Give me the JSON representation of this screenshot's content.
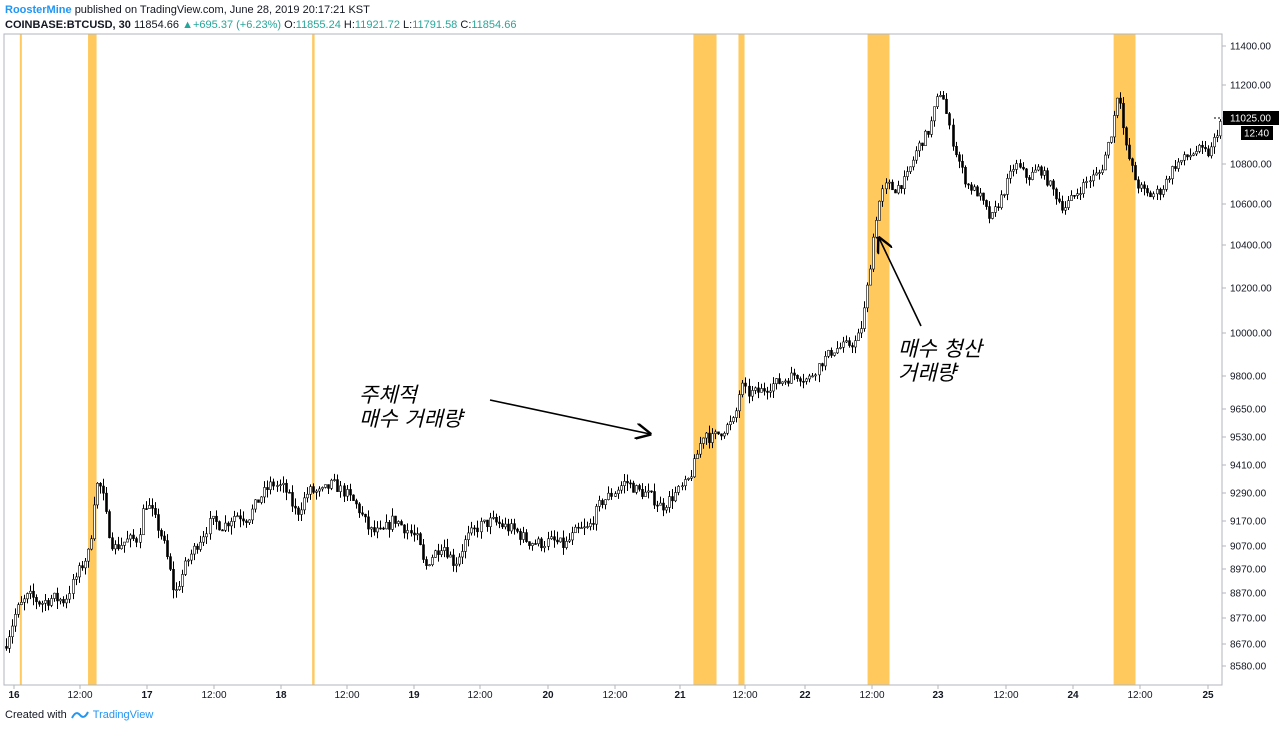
{
  "header": {
    "author": "RoosterMine",
    "published": "published on TradingView.com, June 28, 2019 20:17:21 KST",
    "symbol": "COINBASE:BTCUSD, 30",
    "last": "11854.66",
    "change": "+695.37 (+6.23%)",
    "o_label": "O:",
    "o_value": "11855.24",
    "h_label": "H:",
    "h_value": "11921.72",
    "l_label": "L:",
    "l_value": "11791.58",
    "c_label": "C:",
    "c_value": "11854.66"
  },
  "footer": {
    "created_with": "Created with",
    "brand": "TradingView",
    "logo_icon": "tradingview-logo-icon"
  },
  "chart_data": {
    "type": "candlestick",
    "price_axis_labels": [
      "11400.00",
      "11200.00",
      "11025.00",
      "10800.00",
      "10600.00",
      "10400.00",
      "10200.00",
      "10000.00",
      "9800.00",
      "9650.00",
      "9530.00",
      "9410.00",
      "9290.00",
      "9170.00",
      "9070.00",
      "8970.00",
      "8870.00",
      "8770.00",
      "8670.00",
      "8580.00"
    ],
    "current_price_label": "11025.00",
    "current_time_label": "12:40",
    "time_axis_labels": [
      "16",
      "12:00",
      "17",
      "12:00",
      "18",
      "12:00",
      "19",
      "12:00",
      "20",
      "12:00",
      "21",
      "12:00",
      "22",
      "12:00",
      "23",
      "12:00",
      "24",
      "12:00",
      "25"
    ],
    "x_range": [
      0,
      1
    ],
    "ylim": [
      8560,
      11460
    ],
    "highlight_color": "#ffc95e",
    "highlight_bands": [
      [
        0.013,
        0.014
      ],
      [
        0.069,
        0.076
      ],
      [
        0.253,
        0.255
      ],
      [
        0.566,
        0.585
      ],
      [
        0.603,
        0.608
      ],
      [
        0.709,
        0.727
      ],
      [
        0.911,
        0.929
      ]
    ],
    "annotations": [
      {
        "text": [
          "주체적",
          "매수 거래량"
        ]
      },
      {
        "text": [
          "매수 청산",
          "거래량"
        ]
      }
    ],
    "price_path": [
      [
        0.0,
        8660
      ],
      [
        0.01,
        8800
      ],
      [
        0.02,
        8860
      ],
      [
        0.03,
        8830
      ],
      [
        0.04,
        8850
      ],
      [
        0.05,
        8840
      ],
      [
        0.06,
        8950
      ],
      [
        0.07,
        9050
      ],
      [
        0.075,
        9330
      ],
      [
        0.08,
        9310
      ],
      [
        0.085,
        9150
      ],
      [
        0.09,
        9060
      ],
      [
        0.1,
        9090
      ],
      [
        0.11,
        9100
      ],
      [
        0.115,
        9250
      ],
      [
        0.12,
        9220
      ],
      [
        0.13,
        9100
      ],
      [
        0.135,
        8990
      ],
      [
        0.14,
        8860
      ],
      [
        0.15,
        9000
      ],
      [
        0.16,
        9090
      ],
      [
        0.17,
        9170
      ],
      [
        0.18,
        9150
      ],
      [
        0.19,
        9200
      ],
      [
        0.2,
        9180
      ],
      [
        0.21,
        9270
      ],
      [
        0.22,
        9330
      ],
      [
        0.23,
        9310
      ],
      [
        0.24,
        9200
      ],
      [
        0.25,
        9300
      ],
      [
        0.26,
        9290
      ],
      [
        0.27,
        9330
      ],
      [
        0.28,
        9290
      ],
      [
        0.29,
        9230
      ],
      [
        0.3,
        9130
      ],
      [
        0.31,
        9120
      ],
      [
        0.32,
        9180
      ],
      [
        0.33,
        9140
      ],
      [
        0.34,
        9090
      ],
      [
        0.345,
        8970
      ],
      [
        0.35,
        9020
      ],
      [
        0.36,
        9080
      ],
      [
        0.37,
        8990
      ],
      [
        0.38,
        9100
      ],
      [
        0.39,
        9150
      ],
      [
        0.4,
        9170
      ],
      [
        0.41,
        9150
      ],
      [
        0.42,
        9130
      ],
      [
        0.43,
        9090
      ],
      [
        0.44,
        9080
      ],
      [
        0.45,
        9090
      ],
      [
        0.46,
        9070
      ],
      [
        0.47,
        9130
      ],
      [
        0.48,
        9140
      ],
      [
        0.49,
        9250
      ],
      [
        0.5,
        9290
      ],
      [
        0.51,
        9340
      ],
      [
        0.52,
        9300
      ],
      [
        0.53,
        9280
      ],
      [
        0.54,
        9230
      ],
      [
        0.55,
        9280
      ],
      [
        0.56,
        9330
      ],
      [
        0.565,
        9390
      ],
      [
        0.57,
        9480
      ],
      [
        0.575,
        9560
      ],
      [
        0.58,
        9520
      ],
      [
        0.59,
        9560
      ],
      [
        0.6,
        9600
      ],
      [
        0.605,
        9760
      ],
      [
        0.61,
        9720
      ],
      [
        0.62,
        9730
      ],
      [
        0.63,
        9760
      ],
      [
        0.64,
        9780
      ],
      [
        0.65,
        9810
      ],
      [
        0.66,
        9780
      ],
      [
        0.67,
        9860
      ],
      [
        0.68,
        9920
      ],
      [
        0.69,
        9940
      ],
      [
        0.7,
        9960
      ],
      [
        0.705,
        10050
      ],
      [
        0.71,
        10250
      ],
      [
        0.715,
        10500
      ],
      [
        0.72,
        10650
      ],
      [
        0.725,
        10700
      ],
      [
        0.73,
        10670
      ],
      [
        0.74,
        10720
      ],
      [
        0.75,
        10880
      ],
      [
        0.76,
        10970
      ],
      [
        0.765,
        11100
      ],
      [
        0.77,
        11180
      ],
      [
        0.775,
        11000
      ],
      [
        0.78,
        10880
      ],
      [
        0.79,
        10700
      ],
      [
        0.8,
        10650
      ],
      [
        0.81,
        10520
      ],
      [
        0.82,
        10650
      ],
      [
        0.83,
        10800
      ],
      [
        0.84,
        10730
      ],
      [
        0.85,
        10780
      ],
      [
        0.86,
        10680
      ],
      [
        0.87,
        10580
      ],
      [
        0.88,
        10650
      ],
      [
        0.89,
        10720
      ],
      [
        0.9,
        10760
      ],
      [
        0.91,
        10980
      ],
      [
        0.915,
        11200
      ],
      [
        0.92,
        10900
      ],
      [
        0.93,
        10700
      ],
      [
        0.94,
        10640
      ],
      [
        0.95,
        10670
      ],
      [
        0.96,
        10790
      ],
      [
        0.97,
        10830
      ],
      [
        0.98,
        10870
      ],
      [
        0.99,
        10850
      ],
      [
        1.0,
        11025
      ]
    ]
  }
}
